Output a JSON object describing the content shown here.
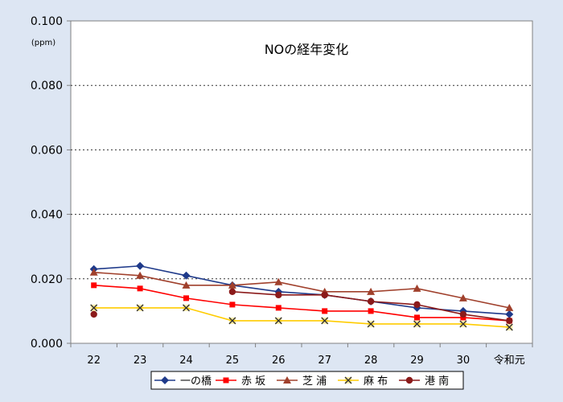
{
  "chart_data": {
    "type": "line",
    "title": "NOの経年変化",
    "unit": "(ppm)",
    "categories": [
      "22",
      "23",
      "24",
      "25",
      "26",
      "27",
      "28",
      "29",
      "30",
      "令和元"
    ],
    "ylim": [
      0,
      0.1
    ],
    "yticks": [
      "0.000",
      "0.020",
      "0.040",
      "0.060",
      "0.080",
      "0.100"
    ],
    "grid": true,
    "legend_position": "bottom",
    "series": [
      {
        "name": "一の橋",
        "color": "#1f3a8a",
        "marker": "diamond",
        "values": [
          0.023,
          0.024,
          0.021,
          0.018,
          0.016,
          0.015,
          0.013,
          0.011,
          0.01,
          0.009
        ]
      },
      {
        "name": "赤 坂",
        "color": "#ff0000",
        "marker": "square",
        "values": [
          0.018,
          0.017,
          0.014,
          0.012,
          0.011,
          0.01,
          0.01,
          0.008,
          0.008,
          0.007
        ]
      },
      {
        "name": "芝 浦",
        "color": "#a0402c",
        "marker": "triangle",
        "values": [
          0.022,
          0.021,
          0.018,
          0.018,
          0.019,
          0.016,
          0.016,
          0.017,
          0.014,
          0.011
        ]
      },
      {
        "name": "麻 布",
        "color": "#ffcc00",
        "marker": "x",
        "values": [
          0.011,
          0.011,
          0.011,
          0.007,
          0.007,
          0.007,
          0.006,
          0.006,
          0.006,
          0.005
        ]
      },
      {
        "name": "港 南",
        "color": "#8b1a1a",
        "marker": "circle",
        "values": [
          0.009,
          null,
          null,
          0.016,
          0.015,
          0.015,
          0.013,
          0.012,
          0.009,
          0.007
        ]
      }
    ]
  }
}
